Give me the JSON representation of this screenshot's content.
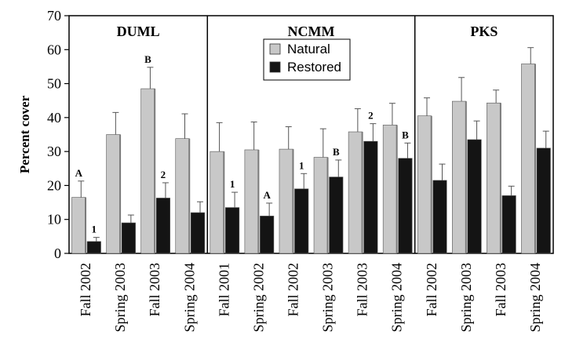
{
  "chart_data": {
    "type": "bar",
    "title": "",
    "xlabel": "",
    "ylabel": "Percent cover",
    "ylim": [
      0,
      70
    ],
    "yticks": [
      "0",
      "10",
      "20",
      "30",
      "40",
      "50",
      "60",
      "70"
    ],
    "grid": false,
    "legend": {
      "placement": "top-center",
      "entries": [
        {
          "name": "Natural",
          "color": "#c8c8c8"
        },
        {
          "name": "Restored",
          "color": "#141414"
        }
      ]
    },
    "panels": [
      {
        "name": "DUML",
        "categories": [
          "Fall 2002",
          "Spring 2003",
          "Fall 2003",
          "Spring 2004"
        ],
        "series": [
          {
            "name": "Natural",
            "values": [
              16.5,
              35.0,
              48.5,
              33.8
            ],
            "errors": [
              4.8,
              6.5,
              6.3,
              7.3
            ],
            "labels": [
              "A",
              "",
              "B",
              ""
            ]
          },
          {
            "name": "Restored",
            "values": [
              3.5,
              9.0,
              16.3,
              12.0
            ],
            "errors": [
              1.2,
              2.3,
              4.5,
              3.2
            ],
            "labels": [
              "1",
              "",
              "2",
              ""
            ]
          }
        ]
      },
      {
        "name": "NCMM",
        "categories": [
          "Fall 2001",
          "Spring 2002",
          "Fall 2002",
          "Spring 2003",
          "Fall 2003",
          "Spring 2004"
        ],
        "series": [
          {
            "name": "Natural",
            "values": [
              30.0,
              30.5,
              30.7,
              28.3,
              35.8,
              37.8
            ],
            "errors": [
              8.5,
              8.2,
              6.6,
              8.4,
              6.8,
              6.4
            ],
            "labels": [
              "",
              "",
              "",
              "",
              "",
              ""
            ]
          },
          {
            "name": "Restored",
            "values": [
              13.5,
              11.0,
              19.0,
              22.5,
              33.0,
              28.0
            ],
            "errors": [
              4.5,
              3.8,
              4.5,
              5.0,
              5.2,
              4.5
            ],
            "labels": [
              "1",
              "A",
              "1",
              "B",
              "2",
              "B"
            ]
          }
        ]
      },
      {
        "name": "PKS",
        "categories": [
          "Fall 2002",
          "Spring 2003",
          "Fall 2003",
          "Spring 2004"
        ],
        "series": [
          {
            "name": "Natural",
            "values": [
              40.5,
              44.8,
              44.3,
              55.8
            ],
            "errors": [
              5.3,
              7.0,
              3.8,
              4.8
            ],
            "labels": [
              "",
              "",
              "",
              ""
            ]
          },
          {
            "name": "Restored",
            "values": [
              21.5,
              33.5,
              17.0,
              31.0
            ],
            "errors": [
              4.8,
              5.5,
              2.8,
              5.0
            ],
            "labels": [
              "",
              "",
              "",
              ""
            ]
          }
        ]
      }
    ]
  }
}
